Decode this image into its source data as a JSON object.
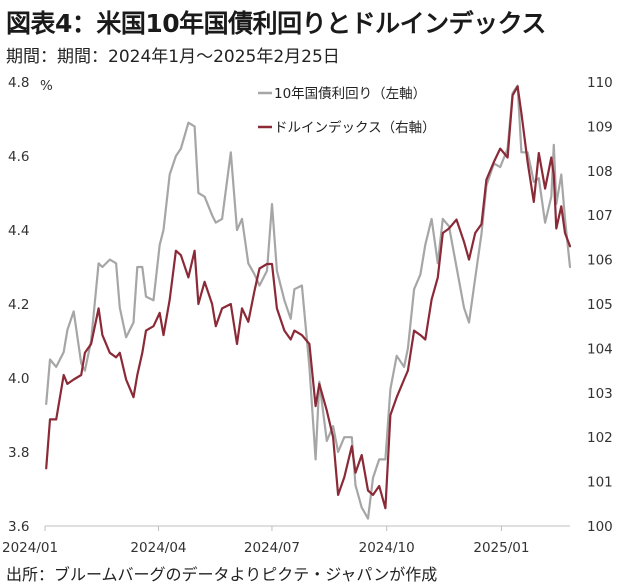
{
  "title": "図表4：米国10年国債利回りとドルインデックス",
  "subtitle": "期間：期間：2024年1月～2025年2月25日",
  "source": "出所：ブルームバーグのデータよりピクテ・ジャパンが作成",
  "chart_data": {
    "type": "line",
    "x_tick_labels": [
      "2024/01",
      "2024/04",
      "2024/07",
      "2024/10",
      "2025/01"
    ],
    "x_ticks": [
      "2024-01-01",
      "2024-04-01",
      "2024-07-01",
      "2024-10-01",
      "2025-01-01"
    ],
    "x_range": [
      "2024-01-01",
      "2025-02-25"
    ],
    "y_left": {
      "unit": "%",
      "min": 3.6,
      "max": 4.8,
      "ticks": [
        3.6,
        3.8,
        4.0,
        4.2,
        4.4,
        4.6,
        4.8
      ],
      "tick_labels": [
        "3.6",
        "3.8",
        "4.0",
        "4.2",
        "4.4",
        "4.6",
        "4.8"
      ]
    },
    "y_right": {
      "min": 100,
      "max": 110,
      "ticks": [
        100,
        101,
        102,
        103,
        104,
        105,
        106,
        107,
        108,
        109,
        110
      ],
      "tick_labels": [
        "100",
        "101",
        "102",
        "103",
        "104",
        "105",
        "106",
        "107",
        "108",
        "109",
        "110"
      ]
    },
    "legend_position": "top-center",
    "grid": false,
    "series": [
      {
        "name": "10年国債利回り（左軸）",
        "axis": "left",
        "color": "#a6a6a6",
        "points": [
          [
            "2024-01-02",
            3.93
          ],
          [
            "2024-01-05",
            4.05
          ],
          [
            "2024-01-10",
            4.03
          ],
          [
            "2024-01-16",
            4.07
          ],
          [
            "2024-01-19",
            4.13
          ],
          [
            "2024-01-24",
            4.18
          ],
          [
            "2024-01-30",
            4.04
          ],
          [
            "2024-02-02",
            4.02
          ],
          [
            "2024-02-07",
            4.1
          ],
          [
            "2024-02-13",
            4.31
          ],
          [
            "2024-02-16",
            4.3
          ],
          [
            "2024-02-22",
            4.32
          ],
          [
            "2024-02-27",
            4.31
          ],
          [
            "2024-03-01",
            4.19
          ],
          [
            "2024-03-06",
            4.11
          ],
          [
            "2024-03-12",
            4.15
          ],
          [
            "2024-03-15",
            4.3
          ],
          [
            "2024-03-19",
            4.3
          ],
          [
            "2024-03-22",
            4.22
          ],
          [
            "2024-03-28",
            4.21
          ],
          [
            "2024-04-02",
            4.36
          ],
          [
            "2024-04-05",
            4.4
          ],
          [
            "2024-04-10",
            4.55
          ],
          [
            "2024-04-15",
            4.6
          ],
          [
            "2024-04-19",
            4.62
          ],
          [
            "2024-04-25",
            4.69
          ],
          [
            "2024-04-30",
            4.68
          ],
          [
            "2024-05-03",
            4.5
          ],
          [
            "2024-05-08",
            4.49
          ],
          [
            "2024-05-14",
            4.44
          ],
          [
            "2024-05-17",
            4.42
          ],
          [
            "2024-05-22",
            4.43
          ],
          [
            "2024-05-29",
            4.61
          ],
          [
            "2024-06-03",
            4.4
          ],
          [
            "2024-06-07",
            4.43
          ],
          [
            "2024-06-12",
            4.31
          ],
          [
            "2024-06-17",
            4.28
          ],
          [
            "2024-06-21",
            4.25
          ],
          [
            "2024-06-27",
            4.29
          ],
          [
            "2024-07-01",
            4.47
          ],
          [
            "2024-07-05",
            4.29
          ],
          [
            "2024-07-11",
            4.21
          ],
          [
            "2024-07-16",
            4.16
          ],
          [
            "2024-07-19",
            4.24
          ],
          [
            "2024-07-25",
            4.25
          ],
          [
            "2024-07-31",
            4.03
          ],
          [
            "2024-08-05",
            3.78
          ],
          [
            "2024-08-08",
            3.99
          ],
          [
            "2024-08-14",
            3.83
          ],
          [
            "2024-08-19",
            3.87
          ],
          [
            "2024-08-23",
            3.8
          ],
          [
            "2024-08-28",
            3.84
          ],
          [
            "2024-09-03",
            3.84
          ],
          [
            "2024-09-06",
            3.71
          ],
          [
            "2024-09-11",
            3.65
          ],
          [
            "2024-09-16",
            3.62
          ],
          [
            "2024-09-20",
            3.73
          ],
          [
            "2024-09-25",
            3.78
          ],
          [
            "2024-09-30",
            3.78
          ],
          [
            "2024-10-04",
            3.97
          ],
          [
            "2024-10-09",
            4.06
          ],
          [
            "2024-10-15",
            4.03
          ],
          [
            "2024-10-18",
            4.08
          ],
          [
            "2024-10-23",
            4.24
          ],
          [
            "2024-10-28",
            4.28
          ],
          [
            "2024-11-01",
            4.36
          ],
          [
            "2024-11-06",
            4.43
          ],
          [
            "2024-11-11",
            4.31
          ],
          [
            "2024-11-15",
            4.43
          ],
          [
            "2024-11-20",
            4.41
          ],
          [
            "2024-11-26",
            4.3
          ],
          [
            "2024-12-02",
            4.19
          ],
          [
            "2024-12-06",
            4.15
          ],
          [
            "2024-12-11",
            4.27
          ],
          [
            "2024-12-16",
            4.39
          ],
          [
            "2024-12-20",
            4.52
          ],
          [
            "2024-12-26",
            4.58
          ],
          [
            "2024-12-31",
            4.57
          ],
          [
            "2025-01-06",
            4.62
          ],
          [
            "2025-01-10",
            4.77
          ],
          [
            "2025-01-14",
            4.79
          ],
          [
            "2025-01-17",
            4.61
          ],
          [
            "2025-01-22",
            4.61
          ],
          [
            "2025-01-27",
            4.53
          ],
          [
            "2025-01-31",
            4.54
          ],
          [
            "2025-02-05",
            4.42
          ],
          [
            "2025-02-10",
            4.49
          ],
          [
            "2025-02-12",
            4.63
          ],
          [
            "2025-02-14",
            4.47
          ],
          [
            "2025-02-18",
            4.55
          ],
          [
            "2025-02-21",
            4.43
          ],
          [
            "2025-02-25",
            4.3
          ]
        ]
      },
      {
        "name": "ドルインデックス（右軸）",
        "axis": "right",
        "color": "#8b2a37",
        "points": [
          [
            "2024-01-02",
            101.3
          ],
          [
            "2024-01-05",
            102.4
          ],
          [
            "2024-01-10",
            102.4
          ],
          [
            "2024-01-16",
            103.4
          ],
          [
            "2024-01-19",
            103.2
          ],
          [
            "2024-01-24",
            103.3
          ],
          [
            "2024-01-30",
            103.4
          ],
          [
            "2024-02-02",
            103.9
          ],
          [
            "2024-02-07",
            104.1
          ],
          [
            "2024-02-13",
            104.9
          ],
          [
            "2024-02-16",
            104.3
          ],
          [
            "2024-02-22",
            103.9
          ],
          [
            "2024-02-27",
            103.8
          ],
          [
            "2024-03-01",
            103.9
          ],
          [
            "2024-03-06",
            103.3
          ],
          [
            "2024-03-12",
            102.9
          ],
          [
            "2024-03-15",
            103.4
          ],
          [
            "2024-03-19",
            103.9
          ],
          [
            "2024-03-22",
            104.4
          ],
          [
            "2024-03-28",
            104.5
          ],
          [
            "2024-04-02",
            104.8
          ],
          [
            "2024-04-05",
            104.3
          ],
          [
            "2024-04-10",
            105.1
          ],
          [
            "2024-04-15",
            106.2
          ],
          [
            "2024-04-19",
            106.1
          ],
          [
            "2024-04-25",
            105.6
          ],
          [
            "2024-04-30",
            106.2
          ],
          [
            "2024-05-03",
            105.0
          ],
          [
            "2024-05-08",
            105.5
          ],
          [
            "2024-05-14",
            105.0
          ],
          [
            "2024-05-17",
            104.5
          ],
          [
            "2024-05-22",
            104.9
          ],
          [
            "2024-05-29",
            105.0
          ],
          [
            "2024-06-03",
            104.1
          ],
          [
            "2024-06-07",
            104.9
          ],
          [
            "2024-06-12",
            104.6
          ],
          [
            "2024-06-17",
            105.3
          ],
          [
            "2024-06-21",
            105.8
          ],
          [
            "2024-06-27",
            105.9
          ],
          [
            "2024-07-01",
            105.9
          ],
          [
            "2024-07-05",
            104.9
          ],
          [
            "2024-07-11",
            104.4
          ],
          [
            "2024-07-16",
            104.2
          ],
          [
            "2024-07-19",
            104.4
          ],
          [
            "2024-07-25",
            104.3
          ],
          [
            "2024-07-31",
            104.1
          ],
          [
            "2024-08-05",
            102.7
          ],
          [
            "2024-08-08",
            103.2
          ],
          [
            "2024-08-14",
            102.6
          ],
          [
            "2024-08-19",
            102.0
          ],
          [
            "2024-08-23",
            100.7
          ],
          [
            "2024-08-28",
            101.1
          ],
          [
            "2024-09-03",
            101.8
          ],
          [
            "2024-09-06",
            101.2
          ],
          [
            "2024-09-11",
            101.6
          ],
          [
            "2024-09-16",
            100.8
          ],
          [
            "2024-09-20",
            100.7
          ],
          [
            "2024-09-25",
            100.9
          ],
          [
            "2024-09-30",
            100.4
          ],
          [
            "2024-10-04",
            102.5
          ],
          [
            "2024-10-09",
            102.9
          ],
          [
            "2024-10-15",
            103.3
          ],
          [
            "2024-10-18",
            103.5
          ],
          [
            "2024-10-23",
            104.4
          ],
          [
            "2024-10-28",
            104.3
          ],
          [
            "2024-11-01",
            104.2
          ],
          [
            "2024-11-06",
            105.1
          ],
          [
            "2024-11-11",
            105.6
          ],
          [
            "2024-11-15",
            106.6
          ],
          [
            "2024-11-20",
            106.7
          ],
          [
            "2024-11-26",
            106.9
          ],
          [
            "2024-12-02",
            106.4
          ],
          [
            "2024-12-06",
            106.0
          ],
          [
            "2024-12-11",
            106.6
          ],
          [
            "2024-12-16",
            106.8
          ],
          [
            "2024-12-20",
            107.8
          ],
          [
            "2024-12-26",
            108.2
          ],
          [
            "2024-12-31",
            108.5
          ],
          [
            "2025-01-06",
            108.3
          ],
          [
            "2025-01-10",
            109.7
          ],
          [
            "2025-01-14",
            109.9
          ],
          [
            "2025-01-17",
            109.3
          ],
          [
            "2025-01-22",
            108.2
          ],
          [
            "2025-01-27",
            107.3
          ],
          [
            "2025-01-31",
            108.4
          ],
          [
            "2025-02-05",
            107.6
          ],
          [
            "2025-02-10",
            108.3
          ],
          [
            "2025-02-12",
            107.9
          ],
          [
            "2025-02-14",
            106.7
          ],
          [
            "2025-02-18",
            107.2
          ],
          [
            "2025-02-21",
            106.6
          ],
          [
            "2025-02-25",
            106.3
          ]
        ]
      }
    ]
  }
}
